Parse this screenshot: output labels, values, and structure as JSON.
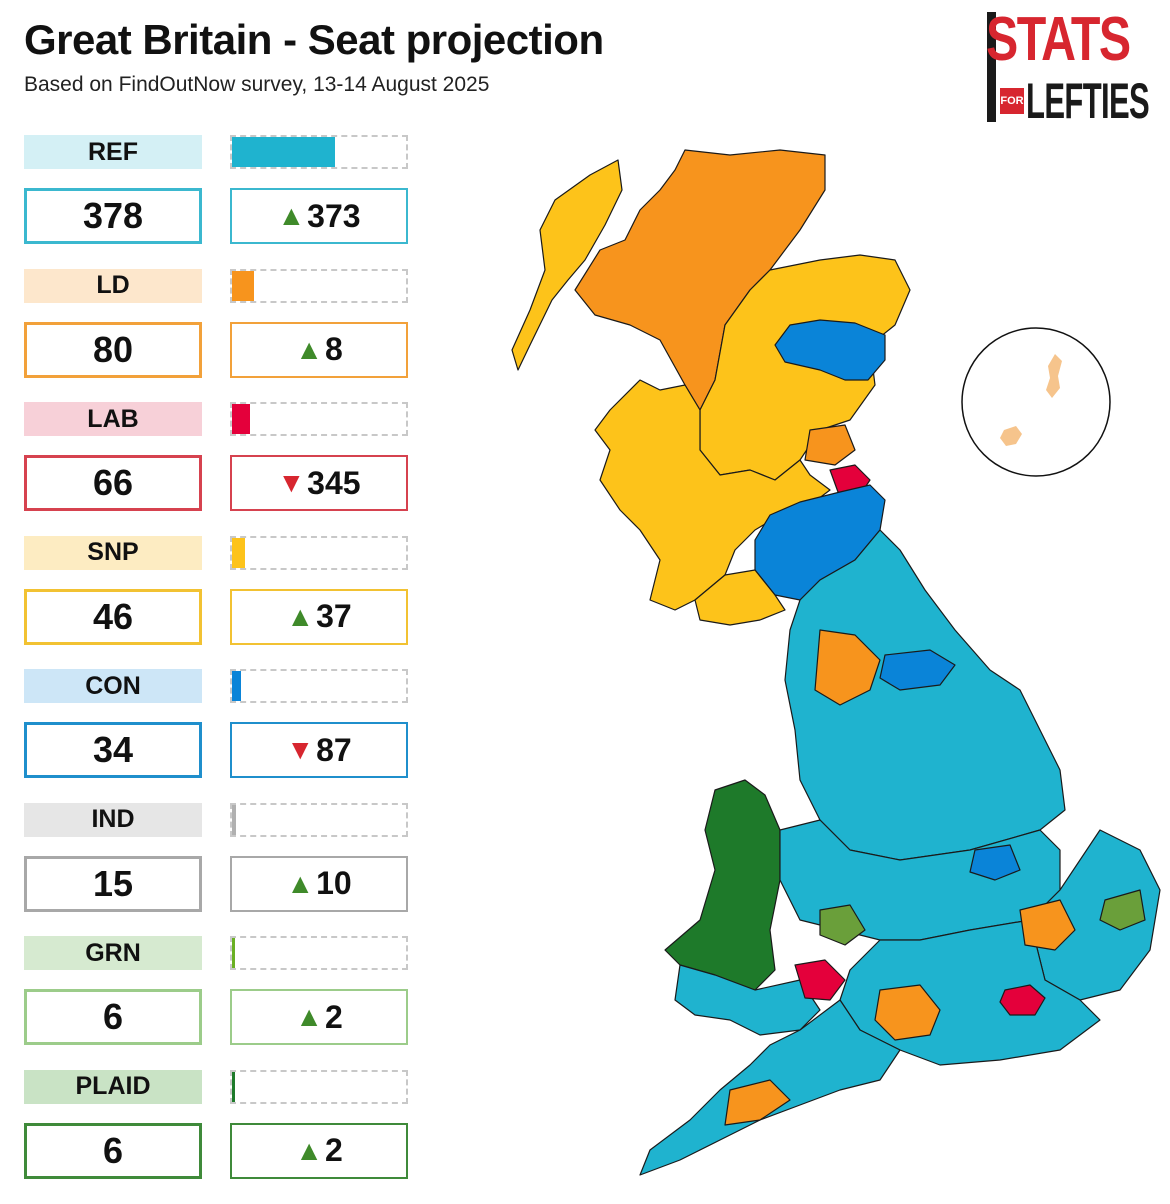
{
  "header": {
    "title": "Great Britain - Seat projection",
    "subtitle": "Based on FindOutNow survey, 13-14 August 2025"
  },
  "logo": {
    "top": "STATS",
    "small": "FOR",
    "bottom": "LEFTIES"
  },
  "parties": [
    {
      "code": "REF",
      "seats": "378",
      "change": "373",
      "direction": "up",
      "seat_share": 0.59,
      "color": "#1fb3cf",
      "label_bg": "#d4f0f5",
      "border": "#3bb8cf"
    },
    {
      "code": "LD",
      "seats": "80",
      "change": "8",
      "direction": "up",
      "seat_share": 0.125,
      "color": "#f7941d",
      "label_bg": "#fde7cc",
      "border": "#f2a13a"
    },
    {
      "code": "LAB",
      "seats": "66",
      "change": "345",
      "direction": "down",
      "seat_share": 0.103,
      "color": "#e4003b",
      "label_bg": "#f7d0d8",
      "border": "#d6424f"
    },
    {
      "code": "SNP",
      "seats": "46",
      "change": "37",
      "direction": "up",
      "seat_share": 0.072,
      "color": "#fdc31a",
      "label_bg": "#fdecc2",
      "border": "#f2c232"
    },
    {
      "code": "CON",
      "seats": "34",
      "change": "87",
      "direction": "down",
      "seat_share": 0.053,
      "color": "#0a84d8",
      "label_bg": "#cde6f7",
      "border": "#1f8fcc"
    },
    {
      "code": "IND",
      "seats": "15",
      "change": "10",
      "direction": "up",
      "seat_share": 0.023,
      "color": "#b0b0b0",
      "label_bg": "#e6e6e6",
      "border": "#a8a8a8"
    },
    {
      "code": "GRN",
      "seats": "6",
      "change": "2",
      "direction": "up",
      "seat_share": 0.009,
      "color": "#6ab023",
      "label_bg": "#d6ead0",
      "border": "#9ccc8a"
    },
    {
      "code": "PLAID",
      "seats": "6",
      "change": "2",
      "direction": "up",
      "seat_share": 0.009,
      "color": "#1e7a2a",
      "label_bg": "#c9e3c5",
      "border": "#3f8a3a"
    }
  ],
  "map": {
    "regions": [
      {
        "name": "northern-highlands",
        "party": "LD"
      },
      {
        "name": "western-isles",
        "party": "SNP"
      },
      {
        "name": "north-east-scotland",
        "party": "SNP"
      },
      {
        "name": "aberdeenshire",
        "party": "CON"
      },
      {
        "name": "central-scotland",
        "party": "SNP"
      },
      {
        "name": "fife",
        "party": "LD"
      },
      {
        "name": "edinburgh",
        "party": "LAB"
      },
      {
        "name": "scottish-borders",
        "party": "CON"
      },
      {
        "name": "south-west-scotland",
        "party": "SNP"
      },
      {
        "name": "northern-england",
        "party": "REF"
      },
      {
        "name": "cumbria-lakes",
        "party": "LD"
      },
      {
        "name": "yorkshire-dales",
        "party": "CON"
      },
      {
        "name": "midlands",
        "party": "REF"
      },
      {
        "name": "wales-north-west",
        "party": "PLAID"
      },
      {
        "name": "wales-south",
        "party": "REF"
      },
      {
        "name": "east-anglia",
        "party": "REF"
      },
      {
        "name": "south-east",
        "party": "REF"
      },
      {
        "name": "south-west",
        "party": "REF"
      },
      {
        "name": "london",
        "party": "LAB"
      },
      {
        "name": "shetland-orkney",
        "party": "LD"
      }
    ]
  }
}
